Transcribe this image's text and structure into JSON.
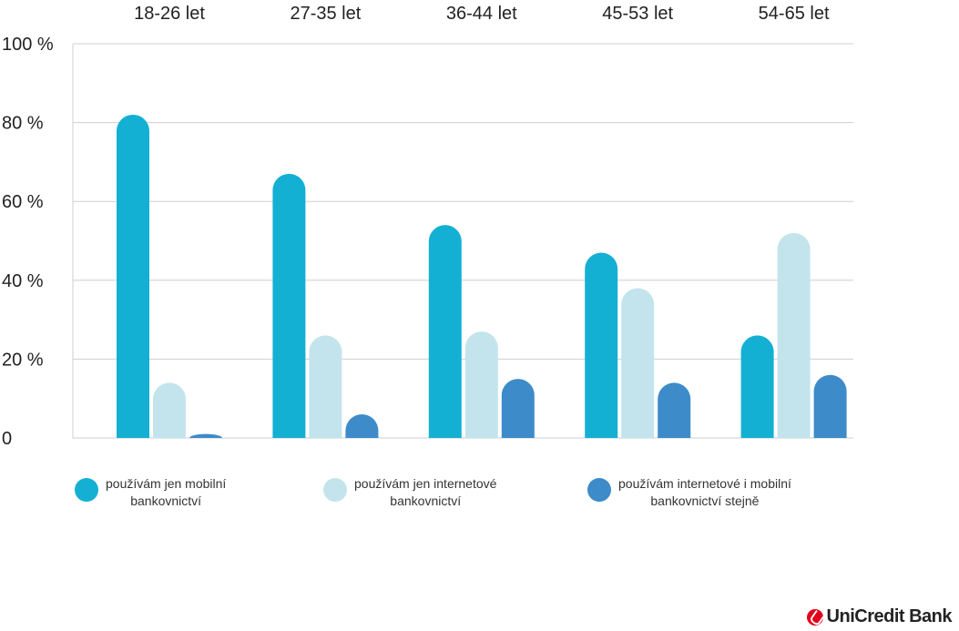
{
  "chart_data": {
    "type": "bar",
    "categories": [
      "18-26 let",
      "27-35 let",
      "36-44 let",
      "45-53 let",
      "54-65 let"
    ],
    "y_ticks": [
      "0",
      "20 %",
      "40 %",
      "60 %",
      "80 %",
      "100 %"
    ],
    "ylim": [
      0,
      100
    ],
    "grid": true,
    "series": [
      {
        "name": "používám jen mobilní bankovnictví",
        "color": "#14b0d4",
        "values": [
          82,
          67,
          54,
          47,
          26
        ]
      },
      {
        "name": "používám jen internetové bankovnictví",
        "color": "#c3e4ed",
        "values": [
          14,
          26,
          27,
          38,
          52
        ]
      },
      {
        "name": "používám internetové i mobilní bankovnictví stejně",
        "color": "#3d8bc9",
        "values": [
          1,
          6,
          15,
          14,
          16
        ]
      }
    ],
    "legend_placement": "bottom"
  },
  "legend": [
    {
      "text": "používám jen mobilní\nbankovnictví",
      "color": "#14b0d4"
    },
    {
      "text": "používám jen internetové\nbankovnictví",
      "color": "#c3e4ed"
    },
    {
      "text": "používám internetové i mobilní\nbankovnictví stejně",
      "color": "#3d8bc9"
    }
  ],
  "brand": {
    "name": "UniCredit Bank",
    "color": "#e2001a"
  }
}
